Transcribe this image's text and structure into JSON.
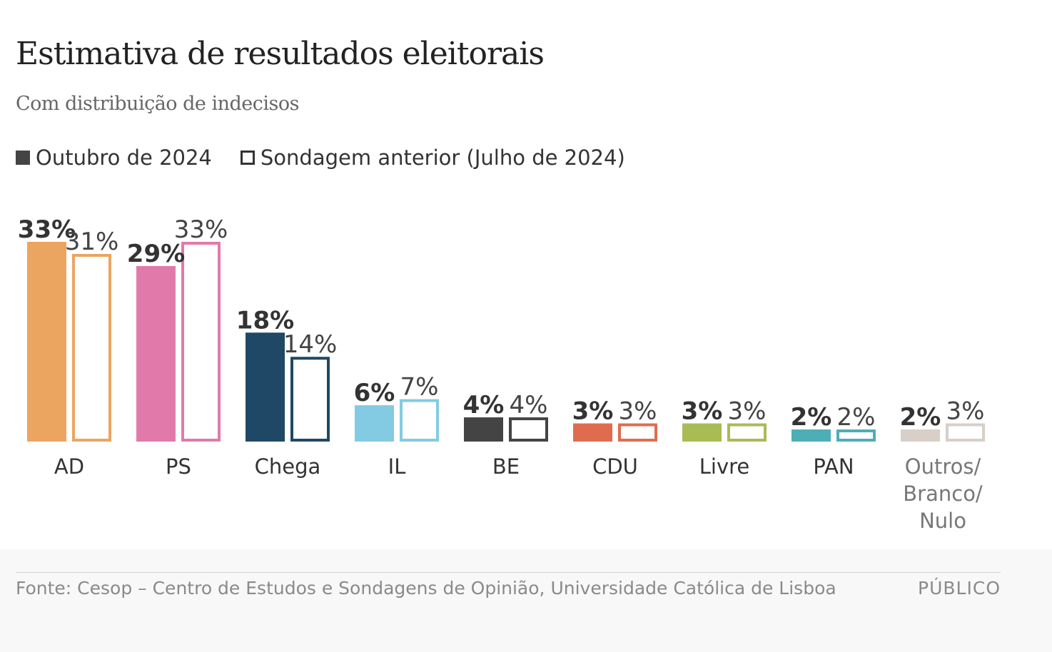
{
  "title": "Estimativa de resultados eleitorais",
  "subtitle": "Com distribuição de indecisos",
  "legend": {
    "current": "Outubro de 2024",
    "previous": "Sondagem anterior (Julho de 2024)"
  },
  "footer": {
    "source": "Fonte: Cesop – Centro de Estudos e Sondagens de Opinião, Universidade Católica de Lisboa",
    "brand": "PÚBLICO"
  },
  "chart_data": {
    "type": "bar",
    "categories": [
      "AD",
      "PS",
      "Chega",
      "IL",
      "BE",
      "CDU",
      "Livre",
      "PAN",
      "Outros/\nBranco/\nNulo"
    ],
    "series": [
      {
        "name": "Outubro de 2024",
        "style": "filled",
        "values": [
          33,
          29,
          18,
          6,
          4,
          3,
          3,
          2,
          2
        ],
        "labels": [
          "33%",
          "29%",
          "18%",
          "6%",
          "4%",
          "3%",
          "3%",
          "2%",
          "2%"
        ]
      },
      {
        "name": "Sondagem anterior (Julho de 2024)",
        "style": "outline",
        "values": [
          31,
          33,
          14,
          7,
          4,
          3,
          3,
          2,
          3
        ],
        "labels": [
          "31%",
          "33%",
          "14%",
          "7%",
          "4%",
          "3%",
          "3%",
          "2%",
          "3%"
        ]
      }
    ],
    "colors": [
      "#eba560",
      "#e17aab",
      "#1f4866",
      "#82cbe3",
      "#444444",
      "#e06c4f",
      "#a9bb55",
      "#4daeb7",
      "#d7cfc8"
    ],
    "ylim": [
      0,
      33
    ],
    "grid": false,
    "legend_position": "top-left"
  }
}
